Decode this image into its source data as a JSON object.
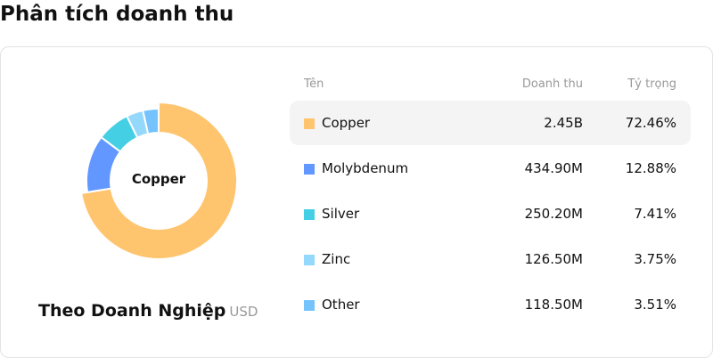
{
  "title": "Phân tích doanh thu",
  "subtitle": "Theo Doanh Nghiệp",
  "unit": "USD",
  "center_label": "Copper",
  "table": {
    "headers": [
      "Tên",
      "Doanh thu",
      "Tỷ trọng"
    ]
  },
  "chart_data": {
    "type": "pie",
    "donut": true,
    "categories": [
      "Copper",
      "Molybdenum",
      "Silver",
      "Zinc",
      "Other"
    ],
    "values": [
      72.46,
      12.88,
      7.41,
      3.75,
      3.51
    ],
    "revenue_labels": [
      "2.45B",
      "434.90M",
      "250.20M",
      "126.50M",
      "118.50M"
    ],
    "percent_labels": [
      "72.46%",
      "12.88%",
      "7.41%",
      "3.75%",
      "3.51%"
    ],
    "colors": [
      "#FFC46E",
      "#6197FF",
      "#45CFE5",
      "#94D8FC",
      "#74C3FC"
    ],
    "selected": "Copper"
  }
}
